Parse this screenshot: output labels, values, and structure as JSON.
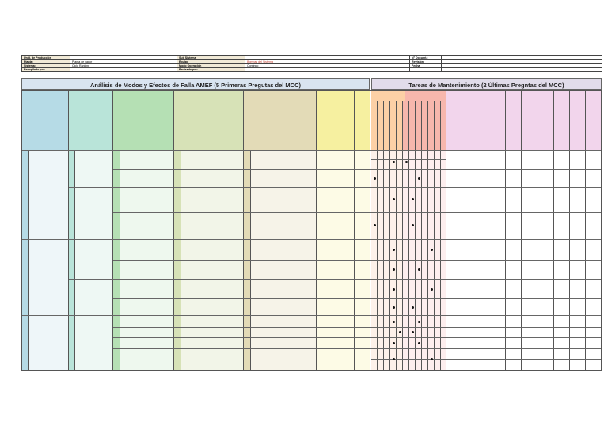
{
  "header": {
    "row1": {
      "label1": "Unid. de Producción",
      "value1": "",
      "label2": "Sub Sistema",
      "value2": "",
      "label3": "N° Documt.:",
      "value3": ""
    },
    "row2": {
      "label1": "Planta:",
      "value1": "Planta de vapor",
      "label2": "Equipo",
      "value2": "Bombas del Sistema",
      "label3": "Revisión",
      "value3": ""
    },
    "row3": {
      "label1": "Sistema:",
      "value1": "Ciclo Rankine",
      "label2": "Modo Operación",
      "value2": "Continuo",
      "label3": "Fecha",
      "value3": ""
    },
    "row4": {
      "label1": "Recopilado por:",
      "value1": "",
      "label2": "Revisado por:",
      "value2": "",
      "label3": "",
      "value3": ""
    }
  },
  "titles": {
    "left": "Análisis de Modos y Efectos de Falla AMEF (5 Primeras Pregutas del MCC)",
    "right": "Tareas de Mantenimiento (2 Últimas Pregntas del MCC)"
  },
  "colors": {
    "blue": "#b6dbe6",
    "blueLight": "#eef6f9",
    "teal": "#b9e4d9",
    "tealLight": "#eef8f4",
    "green": "#b5e0b4",
    "greenLight": "#eef8ee",
    "olive": "#d7e2b7",
    "oliveLight": "#f2f5e8",
    "khaki": "#e3dbb7",
    "khakiLight": "#f6f3e8",
    "yellow": "#f6f0a0",
    "yellowLight": "#fdfbe6",
    "orange": "#fcd0a6",
    "orangeLight": "#fdf1ea",
    "salmon": "#f7b7ad",
    "salmonLight": "#fdeeee",
    "pink": "#f2d5ec",
    "pinkLight": "#ffffff"
  },
  "matrix_marks": [
    {
      "row": 1,
      "col": 3
    },
    {
      "row": 1,
      "col": 5
    },
    {
      "row": 2,
      "col": 0
    },
    {
      "row": 2,
      "col": 7
    },
    {
      "row": 3,
      "col": 3
    },
    {
      "row": 3,
      "col": 6
    },
    {
      "row": 4,
      "col": 0
    },
    {
      "row": 4,
      "col": 6
    },
    {
      "row": 5,
      "col": 3
    },
    {
      "row": 5,
      "col": 9
    },
    {
      "row": 6,
      "col": 3
    },
    {
      "row": 6,
      "col": 7
    },
    {
      "row": 7,
      "col": 3
    },
    {
      "row": 7,
      "col": 9
    },
    {
      "row": 8,
      "col": 3
    },
    {
      "row": 8,
      "col": 6
    },
    {
      "row": 9,
      "col": 3
    },
    {
      "row": 9,
      "col": 7
    },
    {
      "row": 10,
      "col": 4
    },
    {
      "row": 10,
      "col": 6
    },
    {
      "row": 11,
      "col": 3
    },
    {
      "row": 11,
      "col": 7
    },
    {
      "row": 12,
      "col": 3
    },
    {
      "row": 12,
      "col": 9
    }
  ]
}
